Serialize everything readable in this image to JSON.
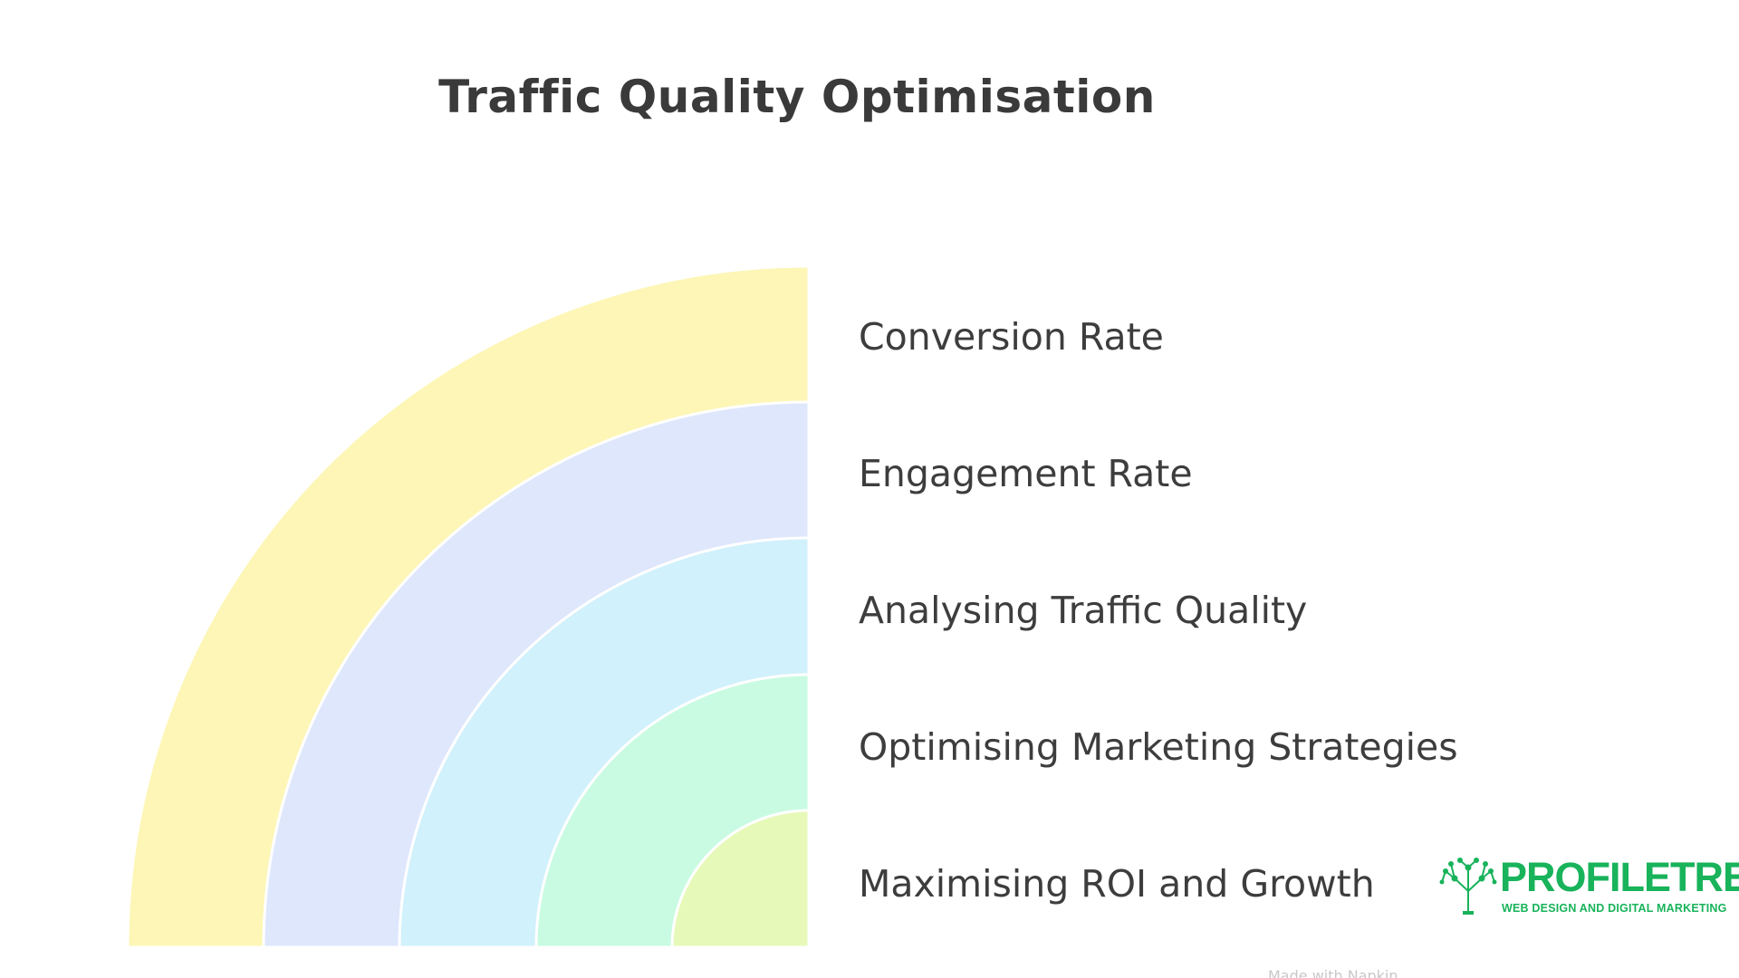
{
  "title": "Traffic Quality Optimisation",
  "layers": [
    {
      "label": "Conversion Rate",
      "color": "#fdf6b6"
    },
    {
      "label": "Engagement Rate",
      "color": "#dee7fc"
    },
    {
      "label": "Analysing Traffic Quality",
      "color": "#d1f1fc"
    },
    {
      "label": "Optimising Marketing Strategies",
      "color": "#c9fbe2"
    },
    {
      "label": "Maximising ROI and Growth",
      "color": "#e7f9b9"
    }
  ],
  "logo": {
    "brand": "PROFILETREE",
    "tagline": "WEB DESIGN AND DIGITAL MARKETING",
    "color": "#18b35b",
    "icon": "tree-icon"
  },
  "footer": {
    "text": "Made with Napkin"
  }
}
